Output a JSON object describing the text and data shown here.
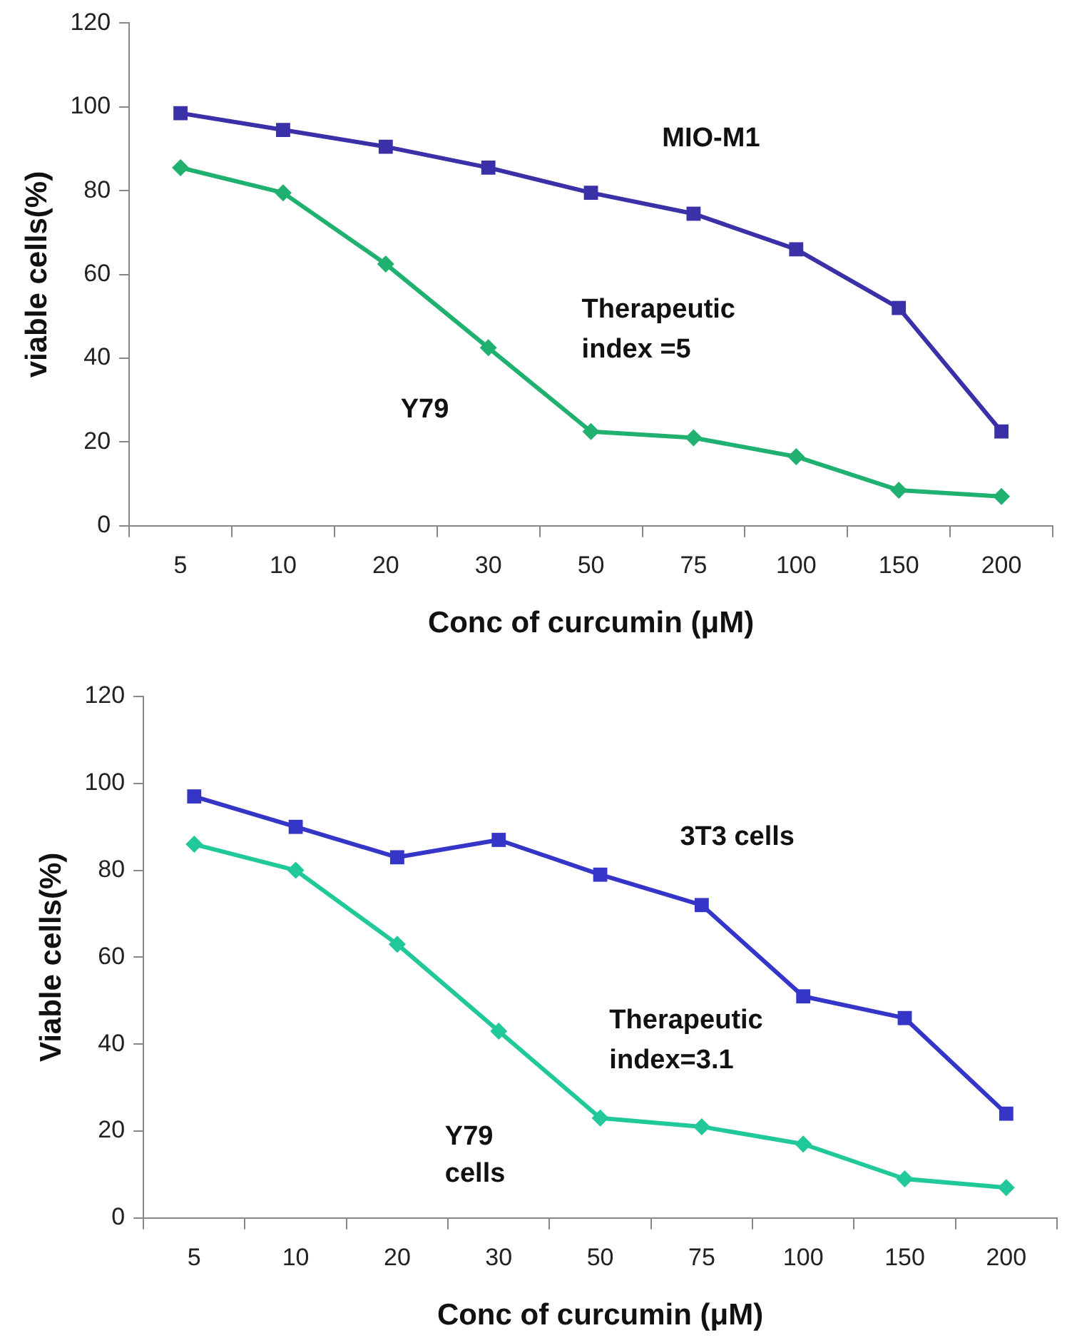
{
  "chart_data": [
    {
      "type": "line",
      "xlabel": "Conc of curcumin (μM)",
      "ylabel": "viable cells(%)",
      "categories": [
        "5",
        "10",
        "20",
        "30",
        "50",
        "75",
        "100",
        "150",
        "200"
      ],
      "ylim": [
        0,
        120
      ],
      "yticks": [
        0,
        20,
        40,
        60,
        80,
        100,
        120
      ],
      "grid": false,
      "legend": false,
      "line_style": "solid",
      "series": [
        {
          "name": "MIO-M1",
          "color": "#3a30a8",
          "marker": "square",
          "values": [
            98.5,
            94.5,
            90.5,
            85.5,
            79.5,
            74.5,
            66,
            52,
            22.5
          ]
        },
        {
          "name": "Y79",
          "color": "#20b070",
          "marker": "diamond",
          "values": [
            85.5,
            79.5,
            62.5,
            42.5,
            22.5,
            21,
            16.5,
            8.5,
            7
          ]
        }
      ],
      "annotations": [
        "Therapeutic\nindex =5"
      ]
    },
    {
      "type": "line",
      "xlabel": "Conc of curcumin (μM)",
      "ylabel": "Viable cells(%)",
      "categories": [
        "5",
        "10",
        "20",
        "30",
        "50",
        "75",
        "100",
        "150",
        "200"
      ],
      "ylim": [
        0,
        120
      ],
      "yticks": [
        0,
        20,
        40,
        60,
        80,
        100,
        120
      ],
      "grid": false,
      "legend": false,
      "line_style": "solid",
      "series": [
        {
          "name": "3T3 cells",
          "color": "#3535c8",
          "marker": "square",
          "values": [
            97,
            90,
            83,
            87,
            79,
            72,
            51,
            46,
            24
          ]
        },
        {
          "name": "Y79\ncells",
          "color": "#20c89a",
          "marker": "diamond",
          "values": [
            86,
            80,
            63,
            43,
            23,
            21,
            17,
            9,
            7
          ]
        }
      ],
      "annotations": [
        "Therapeutic\nindex=3.1"
      ]
    }
  ]
}
